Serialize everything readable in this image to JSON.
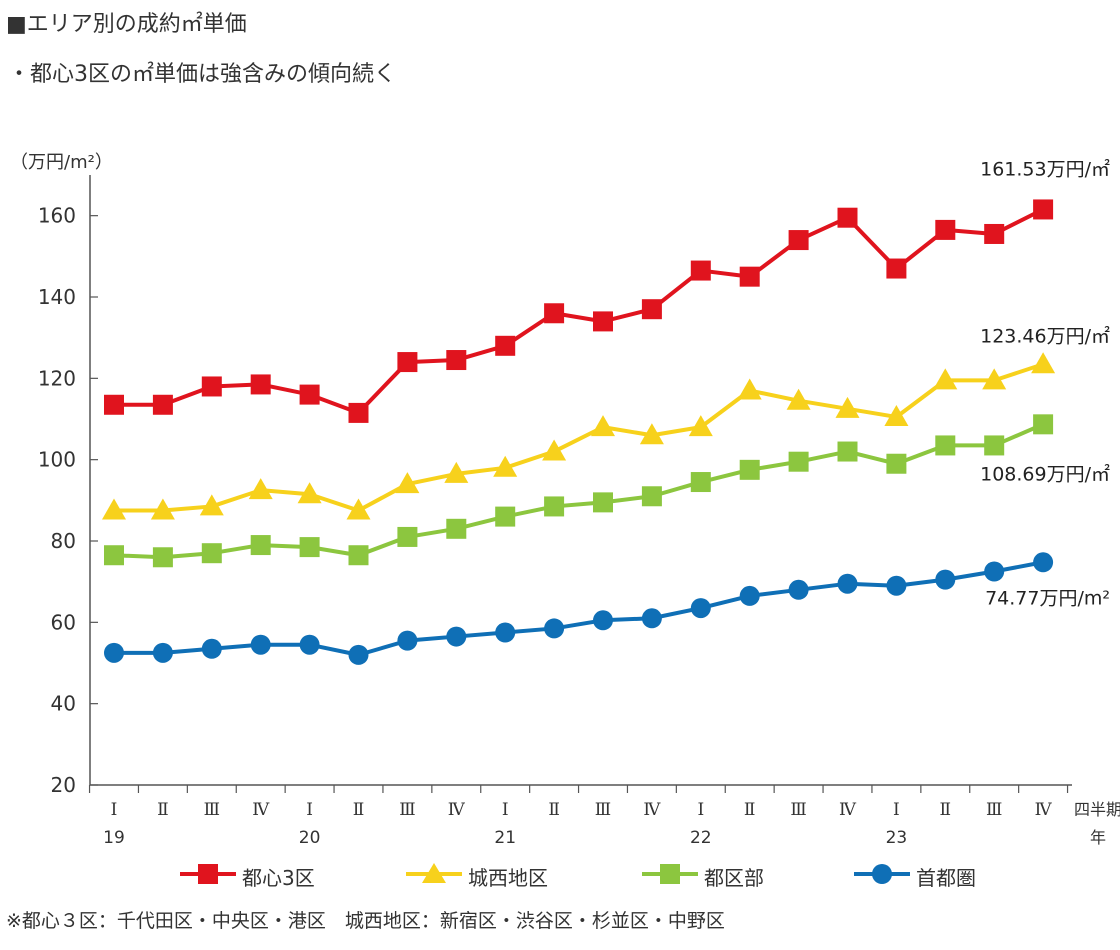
{
  "header": {
    "title": "■エリア別の成約㎡単価",
    "subtitle": "・都心3区の㎡単価は強含みの傾向続く"
  },
  "chart_data": {
    "type": "line",
    "unit_label": "（万円/m²）",
    "yticks": [
      "20",
      "40",
      "60",
      "80",
      "100",
      "120",
      "140",
      "160"
    ],
    "ylim": [
      20,
      170
    ],
    "quarter_labels": [
      "Ⅰ",
      "Ⅱ",
      "Ⅲ",
      "Ⅳ",
      "Ⅰ",
      "Ⅱ",
      "Ⅲ",
      "Ⅳ",
      "Ⅰ",
      "Ⅱ",
      "Ⅲ",
      "Ⅳ",
      "Ⅰ",
      "Ⅱ",
      "Ⅲ",
      "Ⅳ",
      "Ⅰ",
      "Ⅱ",
      "Ⅲ",
      "Ⅳ"
    ],
    "year_labels": [
      "19",
      "20",
      "21",
      "22",
      "23"
    ],
    "x_axis_title_quarter": "四半期",
    "x_axis_title_year": "年",
    "series": [
      {
        "name": "都心3区",
        "color": "#e0141e",
        "marker": "square",
        "values": [
          113.5,
          113.5,
          118,
          118.5,
          116,
          111.5,
          124,
          124.5,
          128,
          136,
          134,
          137,
          146.5,
          145,
          154,
          159.5,
          147,
          156.5,
          155.5,
          161.53
        ],
        "end_label": "161.53万円/㎡"
      },
      {
        "name": "城西地区",
        "color": "#f7d11c",
        "marker": "triangle",
        "values": [
          87.5,
          87.5,
          88.5,
          92.5,
          91.5,
          87.5,
          94,
          96.5,
          98,
          102,
          108,
          106,
          108,
          117,
          114.5,
          112.5,
          110.5,
          119.5,
          119.5,
          123.46
        ],
        "end_label": "123.46万円/㎡"
      },
      {
        "name": "都区部",
        "color": "#8cc63f",
        "marker": "square",
        "values": [
          76.5,
          76,
          77,
          79,
          78.5,
          76.5,
          81,
          83,
          86,
          88.5,
          89.5,
          91,
          94.5,
          97.5,
          99.5,
          102,
          99,
          103.5,
          103.5,
          108.69
        ],
        "end_label": "108.69万円/㎡"
      },
      {
        "name": "首都圏",
        "color": "#0f6fb6",
        "marker": "circle",
        "values": [
          52.5,
          52.5,
          53.5,
          54.5,
          54.5,
          52,
          55.5,
          56.5,
          57.5,
          58.5,
          60.5,
          61,
          63.5,
          66.5,
          68,
          69.5,
          69,
          70.5,
          72.5,
          74.77
        ],
        "end_label": "74.77万円/m²"
      }
    ]
  },
  "footnote": "※都心３区：千代田区・中央区・港区　城西地区：新宿区・渋谷区・杉並区・中野区"
}
